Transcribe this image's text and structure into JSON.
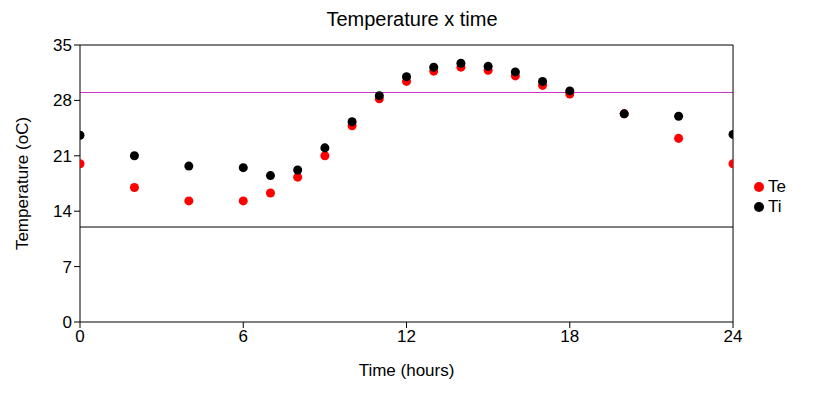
{
  "chart_data": {
    "type": "scatter",
    "title": "Temperature x time",
    "x_label": "Time (hours)",
    "y_label": "Temperature (oC)",
    "xlim": [
      0,
      24
    ],
    "xticks": [
      0,
      6,
      12,
      18,
      24
    ],
    "ylim": [
      0,
      35
    ],
    "yticks": [
      0,
      7,
      14,
      21,
      28,
      35
    ],
    "grid": false,
    "legend": "right",
    "reference_lines": [
      {
        "value": 29,
        "color": "#cc33cc"
      },
      {
        "value": 12,
        "color": "#000000"
      }
    ],
    "series": [
      {
        "name": "Te",
        "color": "#ff0000",
        "marker": "circle",
        "x": [
          0,
          2,
          4,
          6,
          7,
          8,
          9,
          10,
          11,
          12,
          13,
          14,
          15,
          16,
          17,
          18,
          20,
          22,
          24
        ],
        "values": [
          20,
          17,
          15.3,
          15.3,
          16.3,
          18.3,
          21,
          24.8,
          28.2,
          30.4,
          31.7,
          32.2,
          31.8,
          31.1,
          29.9,
          28.8,
          26.3,
          23.2,
          20
        ]
      },
      {
        "name": "Ti",
        "color": "#000000",
        "marker": "circle",
        "x": [
          0,
          2,
          4,
          6,
          7,
          8,
          9,
          10,
          11,
          12,
          13,
          14,
          15,
          16,
          17,
          18,
          20,
          22,
          24
        ],
        "values": [
          23.6,
          21,
          19.7,
          19.5,
          18.5,
          19.2,
          22,
          25.3,
          28.6,
          31,
          32.2,
          32.7,
          32.3,
          31.6,
          30.4,
          29.2,
          26.3,
          26,
          23.7
        ]
      }
    ]
  }
}
